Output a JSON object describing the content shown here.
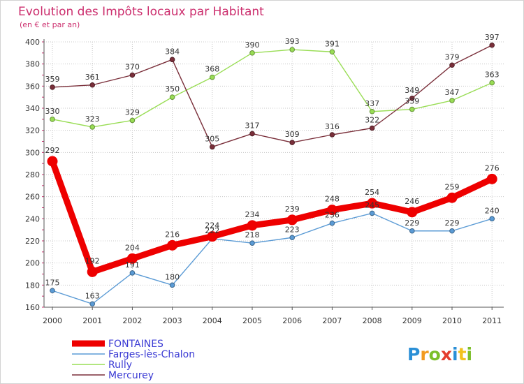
{
  "chart_data": {
    "type": "line",
    "title": "Evolution des Impôts locaux par Habitant",
    "subtitle": "(en € et par an)",
    "xlabel": "",
    "ylabel": "",
    "x": [
      "2000",
      "2001",
      "2002",
      "2003",
      "2004",
      "2005",
      "2006",
      "2007",
      "2008",
      "2009",
      "2010",
      "2011"
    ],
    "ylim": [
      160,
      400
    ],
    "yticks": [
      160,
      180,
      200,
      220,
      240,
      260,
      280,
      300,
      320,
      340,
      360,
      380,
      400
    ],
    "grid": true,
    "legend_position": "bottom-left",
    "series": [
      {
        "name": "FONTAINES",
        "color": "#ee0000",
        "emphasis": true,
        "values": [
          292,
          192,
          204,
          216,
          224,
          234,
          239,
          248,
          254,
          246,
          259,
          276
        ]
      },
      {
        "name": "Farges-lès-Chalon",
        "color": "#5b9bd5",
        "emphasis": false,
        "values": [
          175,
          163,
          191,
          180,
          222,
          218,
          223,
          236,
          245,
          229,
          229,
          240
        ]
      },
      {
        "name": "Rully",
        "color": "#99dd55",
        "emphasis": false,
        "values": [
          330,
          323,
          329,
          350,
          368,
          390,
          393,
          391,
          337,
          339,
          347,
          363
        ]
      },
      {
        "name": "Mercurey",
        "color": "#7a2f3a",
        "emphasis": false,
        "values": [
          359,
          361,
          370,
          384,
          305,
          317,
          309,
          316,
          322,
          349,
          379,
          397
        ]
      }
    ]
  },
  "logo": {
    "letters": [
      {
        "ch": "P",
        "color": "#2a8fd6"
      },
      {
        "ch": "r",
        "color": "#f29a1e"
      },
      {
        "ch": "o",
        "color": "#7cbf2a"
      },
      {
        "ch": "x",
        "color": "#e43d2e"
      },
      {
        "ch": "i",
        "color": "#2a8fd6"
      },
      {
        "ch": "t",
        "color": "#f2c21e"
      },
      {
        "ch": "i",
        "color": "#7cbf2a"
      }
    ]
  }
}
